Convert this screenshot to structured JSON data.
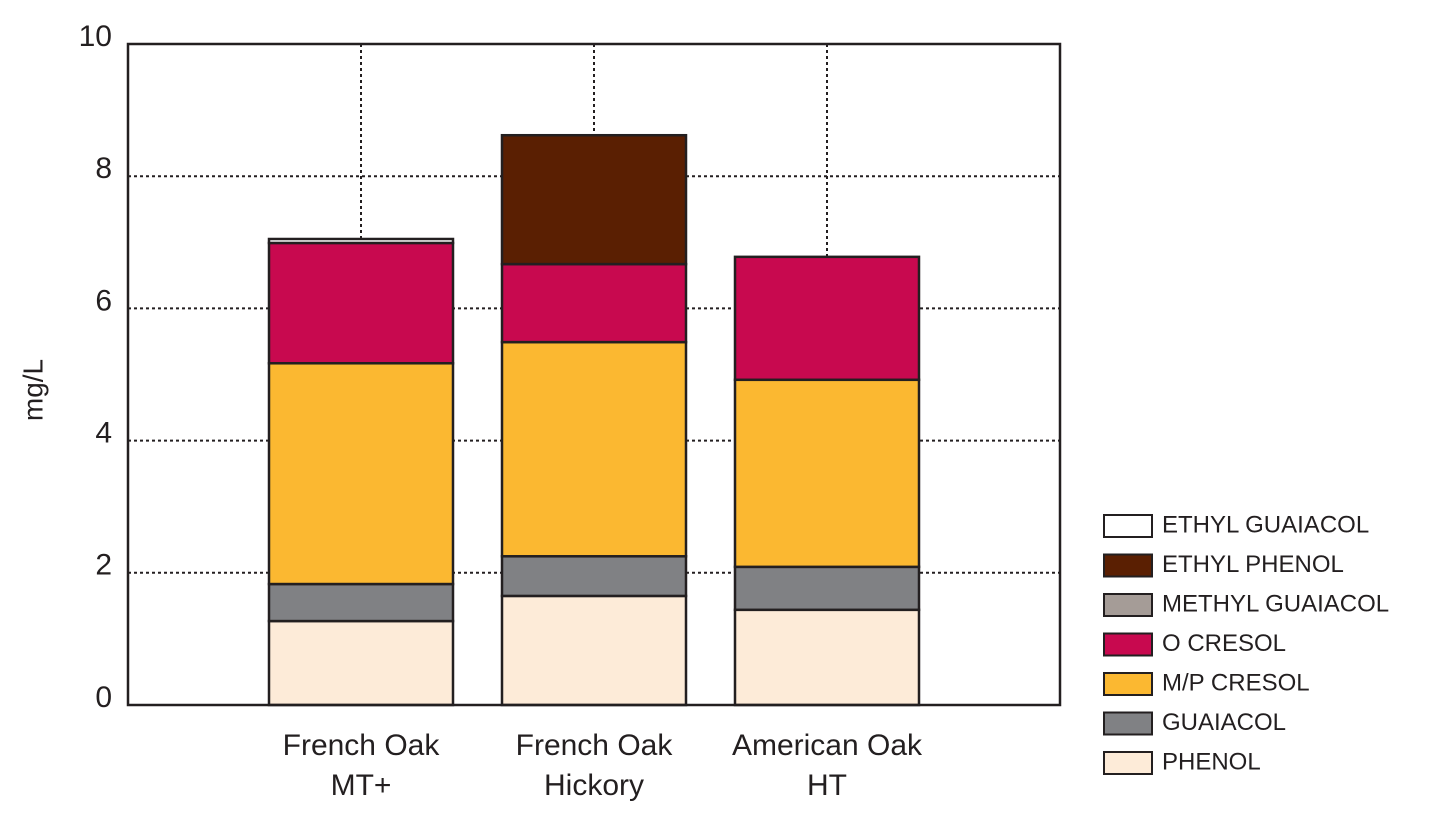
{
  "chart_data": {
    "type": "stacked-bar",
    "y_label": "mg/L",
    "categories": [
      "French Oak\nMT+",
      "French Oak\nHickory",
      "American Oak\nHT"
    ],
    "series": [
      {
        "name": "PHENOL",
        "color": "#fdebd8",
        "values": [
          1.27,
          1.65,
          1.44
        ]
      },
      {
        "name": "GUAIACOL",
        "color": "#808184",
        "values": [
          0.56,
          0.6,
          0.65
        ]
      },
      {
        "name": "M/P CRESOL",
        "color": "#fbb831",
        "values": [
          3.34,
          3.24,
          2.83
        ]
      },
      {
        "name": "O CRESOL",
        "color": "#c8094f",
        "values": [
          1.82,
          1.18,
          1.86
        ]
      },
      {
        "name": "METHYL GUAIACOL",
        "color": "#a59c97",
        "values": [
          0,
          0,
          0
        ]
      },
      {
        "name": "ETHYL PHENOL",
        "color": "#5a1f02",
        "values": [
          0,
          1.95,
          0
        ]
      },
      {
        "name": "ETHYL GUAIACOL",
        "color": "#ffffff",
        "values": [
          0.06,
          0,
          0
        ]
      }
    ],
    "ylim": [
      0,
      10
    ],
    "yticks": [
      0,
      2,
      4,
      6,
      8,
      10
    ],
    "grid": true
  }
}
